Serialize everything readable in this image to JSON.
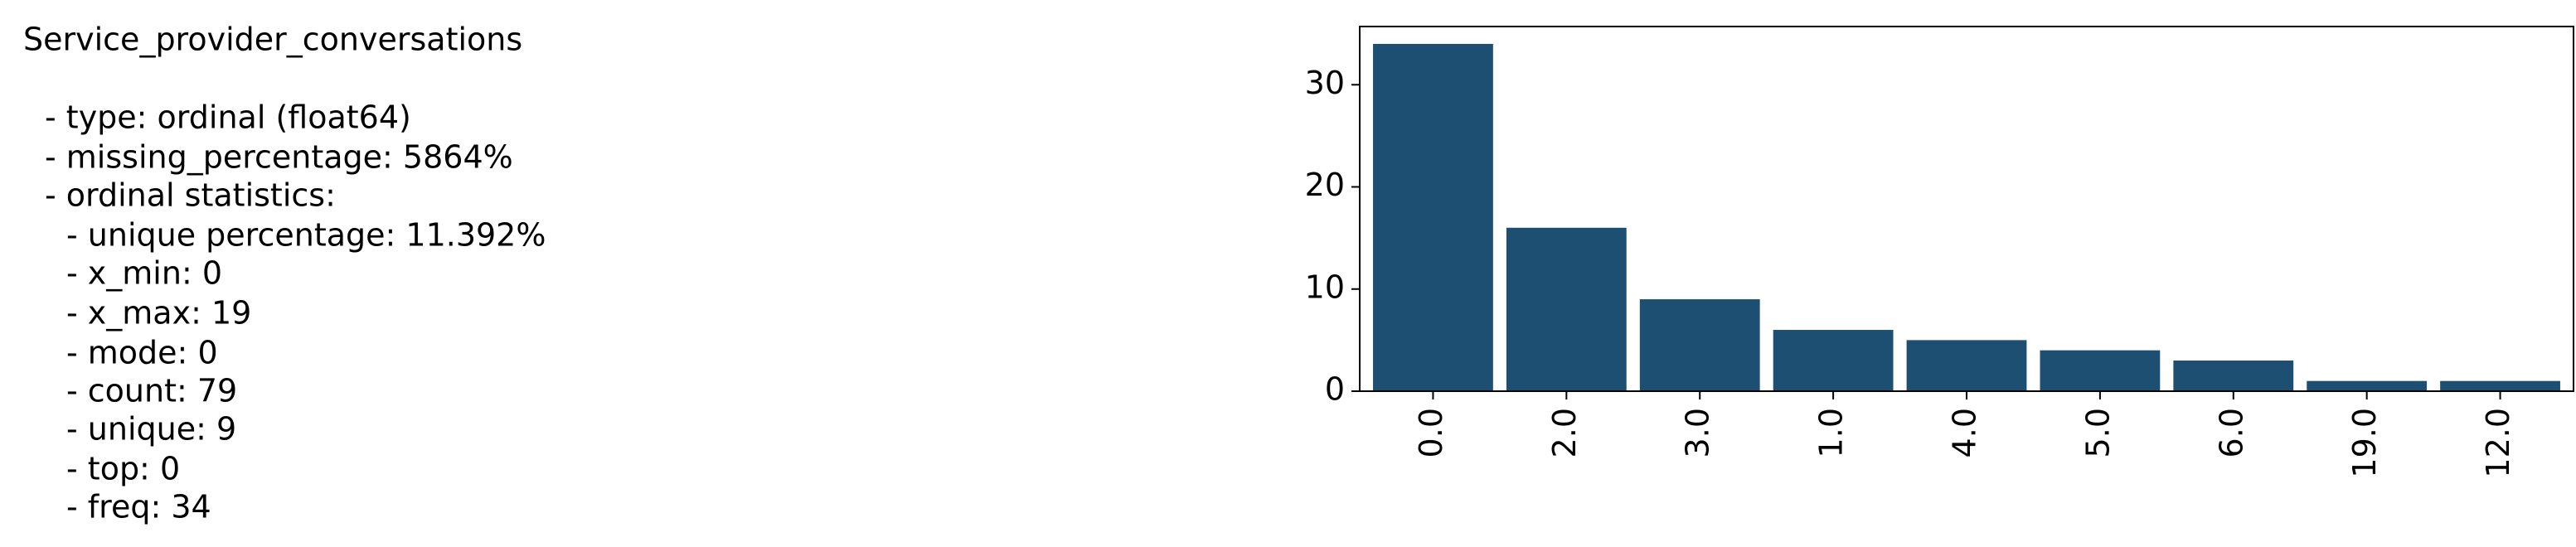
{
  "text": {
    "title": "Service_provider_conversations",
    "lines": [
      "- type: ordinal (float64)",
      "- missing_percentage: 5864%",
      "- ordinal statistics:",
      "- unique percentage: 11.392%",
      "- x_min: 0",
      "- x_max: 19",
      "- mode: 0",
      "- count: 79",
      "- unique: 9",
      "- top: 0",
      "- freq: 34"
    ]
  },
  "chart_data": {
    "type": "bar",
    "categories": [
      "0.0",
      "2.0",
      "3.0",
      "1.0",
      "4.0",
      "5.0",
      "6.0",
      "19.0",
      "12.0"
    ],
    "values": [
      34,
      16,
      9,
      6,
      5,
      4,
      3,
      1,
      1
    ],
    "color": "#1c4f72",
    "ylim": [
      0,
      35.7
    ],
    "yticks": [
      0,
      10,
      20,
      30
    ]
  }
}
